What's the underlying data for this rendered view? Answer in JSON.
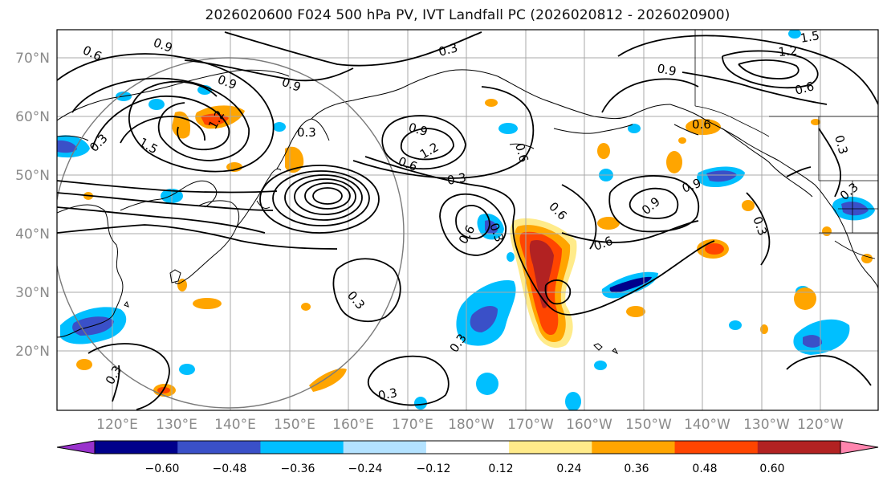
{
  "title": "2026020600 F024 500 hPa PV, IVT Landfall PC (2026020812 - 2026020900)",
  "map": {
    "lat_labels": [
      "70°N",
      "60°N",
      "50°N",
      "40°N",
      "30°N",
      "20°N"
    ],
    "lon_labels": [
      "120°E",
      "130°E",
      "140°E",
      "150°E",
      "160°E",
      "170°E",
      "180°W",
      "170°W",
      "160°W",
      "150°W",
      "140°W",
      "130°W",
      "120°W"
    ],
    "lat_range": [
      10,
      75
    ],
    "lon_range_east": [
      111,
      250
    ],
    "contour_labels": [
      "0.6",
      "0.9",
      "0.9",
      "0.9",
      "1.5",
      "1.2",
      "0.3",
      "0.3",
      "0.6",
      "0.9",
      "1.2",
      "0.3",
      "0.3",
      "0.6",
      "0.6",
      "0.9",
      "0.6",
      "0.3",
      "0.3",
      "0.3",
      "0.3",
      "0.3",
      "0.6",
      "0.9",
      "1.2",
      "1.5",
      "0.6",
      "0.3",
      "0.3",
      "0.3",
      "0.6",
      "0.9"
    ]
  },
  "colorbar": {
    "tick_labels": [
      "−0.60",
      "−0.48",
      "−0.36",
      "−0.24",
      "−0.12",
      "0.12",
      "0.24",
      "0.36",
      "0.48",
      "0.60"
    ],
    "colors": [
      "#9932CC",
      "#00008B",
      "#3A50C8",
      "#00BFFF",
      "#B3E2FF",
      "#FFFFFF",
      "#FFEB8A",
      "#FFA500",
      "#FF4500",
      "#B22222",
      "#FF85AE"
    ]
  }
}
